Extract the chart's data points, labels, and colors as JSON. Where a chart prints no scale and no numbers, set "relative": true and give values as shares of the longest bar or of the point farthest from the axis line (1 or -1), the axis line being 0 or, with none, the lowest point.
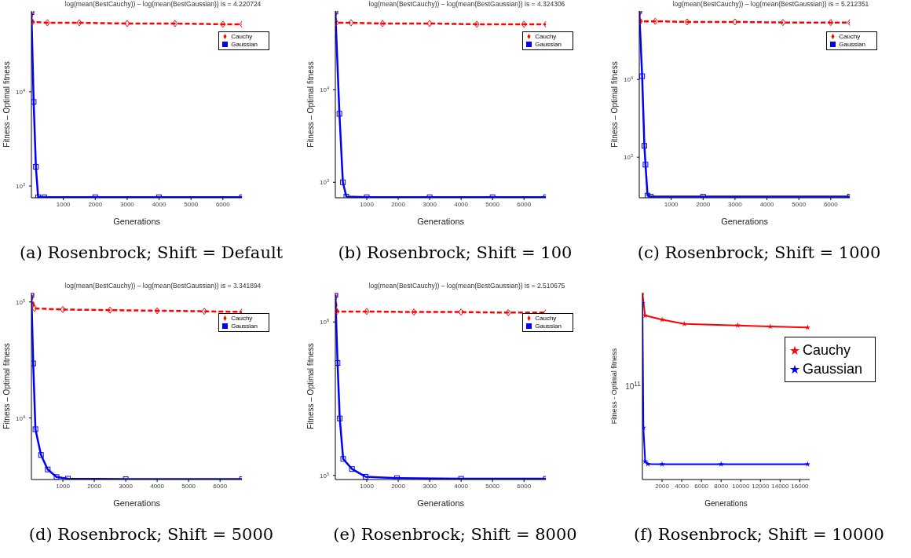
{
  "chart_data": [
    {
      "type": "line",
      "title": "log(mean(BestCauchy)) – log(mean(BestGaussian)) is = 4.220724",
      "xlabel": "Generations",
      "ylabel": "Fitness – Optimal fitness",
      "log": "y",
      "xlim": [
        0,
        6600
      ],
      "xticks": [
        1000,
        2000,
        3000,
        4000,
        5000,
        6000
      ],
      "ylim": [
        750,
        72000
      ],
      "yticks": [
        {
          "value": 1000,
          "label": "10$^{3}$"
        },
        {
          "value": 10000,
          "label": "10$^{4}$"
        }
      ],
      "legend": "top right",
      "annotations": [
        "(a) Rosenbrock; Shift = Default"
      ],
      "series": [
        {
          "name": "Cauchy",
          "color": "#ff0000",
          "line_style": "dashed",
          "marker": "diamond",
          "x": [
            0,
            30,
            500,
            1500,
            3000,
            4500,
            6000,
            6600
          ],
          "values": [
            70000,
            55000,
            54000,
            54000,
            53000,
            53000,
            52000,
            52000
          ]
        },
        {
          "name": "Gaussian",
          "color": "#0000ff",
          "line_style": "solid",
          "marker": "square",
          "x": [
            0,
            70,
            140,
            210,
            400,
            2000,
            4000,
            6600
          ],
          "values": [
            70000,
            7800,
            1600,
            760,
            760,
            760,
            760,
            760
          ]
        }
      ]
    },
    {
      "type": "line",
      "title": "log(mean(BestCauchy)) – log(mean(BestGaussian)) is = 4.324306",
      "xlabel": "Generations",
      "ylabel": "Fitness – Optimal fitness",
      "log": "y",
      "xlim": [
        0,
        6700
      ],
      "xticks": [
        1000,
        2000,
        3000,
        4000,
        5000,
        6000
      ],
      "ylim": [
        680,
        71000
      ],
      "yticks": [
        {
          "value": 1000,
          "label": "10$^{3}$"
        },
        {
          "value": 10000,
          "label": "10$^{4}$"
        }
      ],
      "legend": "top right",
      "annotations": [
        "(b) Rosenbrock; Shift = 100"
      ],
      "series": [
        {
          "name": "Cauchy",
          "color": "#ff0000",
          "line_style": "dashed",
          "marker": "diamond",
          "x": [
            0,
            30,
            500,
            1500,
            3000,
            4500,
            6000,
            6700
          ],
          "values": [
            71000,
            53000,
            53000,
            52000,
            52000,
            51000,
            51000,
            51000
          ]
        },
        {
          "name": "Gaussian",
          "color": "#0000ff",
          "line_style": "solid",
          "marker": "square",
          "x": [
            0,
            130,
            240,
            350,
            1000,
            3000,
            5000,
            6700
          ],
          "values": [
            70000,
            5500,
            1000,
            700,
            690,
            690,
            690,
            690
          ]
        }
      ]
    },
    {
      "type": "line",
      "title": "log(mean(BestCauchy)) – log(mean(BestGaussian)) is = 5.212351",
      "xlabel": "Generations",
      "ylabel": "Fitness – Optimal fitness",
      "log": "y",
      "xlim": [
        0,
        6600
      ],
      "xticks": [
        1000,
        2000,
        3000,
        4000,
        5000,
        6000
      ],
      "ylim": [
        300,
        76000
      ],
      "yticks": [
        {
          "value": 1000,
          "label": "10$^{3}$"
        },
        {
          "value": 10000,
          "label": "10$^{4}$"
        }
      ],
      "legend": "top right",
      "annotations": [
        "(c) Rosenbrock; Shift = 1000"
      ],
      "series": [
        {
          "name": "Cauchy",
          "color": "#ff0000",
          "line_style": "dashed",
          "marker": "diamond",
          "x": [
            0,
            30,
            500,
            1500,
            3000,
            4500,
            6000,
            6600
          ],
          "values": [
            76000,
            56000,
            56000,
            55000,
            55000,
            54000,
            54000,
            54000
          ]
        },
        {
          "name": "Gaussian",
          "color": "#0000ff",
          "line_style": "solid",
          "marker": "square",
          "x": [
            0,
            90,
            160,
            195,
            260,
            360,
            2000,
            6600
          ],
          "values": [
            76000,
            11000,
            1400,
            800,
            320,
            310,
            310,
            310
          ]
        }
      ]
    },
    {
      "type": "line",
      "title": "log(mean(BestCauchy)) – log(mean(BestGaussian)) is = 3.341894",
      "xlabel": "Generations",
      "ylabel": "Fitness – Optimal fitness",
      "log": "y",
      "xlim": [
        0,
        6700
      ],
      "xticks": [
        1000,
        2000,
        3000,
        4000,
        5000,
        6000
      ],
      "ylim": [
        2950,
        120000
      ],
      "yticks": [
        {
          "value": 10000,
          "label": "10$^{4}$"
        },
        {
          "value": 100000,
          "label": "10$^{5}$"
        }
      ],
      "legend": "top right",
      "annotations": [
        "(d) Rosenbrock; Shift = 5000"
      ],
      "series": [
        {
          "name": "Cauchy",
          "color": "#ff0000",
          "line_style": "dashed",
          "marker": "diamond",
          "x": [
            0,
            100,
            1000,
            2500,
            4000,
            5500,
            6700
          ],
          "values": [
            115000,
            88000,
            86000,
            85000,
            84000,
            83000,
            82000
          ]
        },
        {
          "name": "Gaussian",
          "color": "#0000ff",
          "line_style": "solid",
          "marker": "square",
          "x": [
            0,
            57,
            128,
            305,
            520,
            800,
            1160,
            3000,
            6700
          ],
          "values": [
            115000,
            29500,
            8000,
            4800,
            3600,
            3100,
            3000,
            2970,
            2970
          ]
        }
      ]
    },
    {
      "type": "line",
      "title": "log(mean(BestCauchy)) – log(mean(BestGaussian)) is = 2.510675",
      "xlabel": "Generations",
      "ylabel": "Fitness – Optimal fitness",
      "log": "y",
      "xlim": [
        0,
        6700
      ],
      "xticks": [
        1000,
        2000,
        3000,
        4000,
        5000,
        6000
      ],
      "ylim": [
        94000,
        1550000
      ],
      "yticks": [
        {
          "value": 100000,
          "label": "10$^{5}$"
        },
        {
          "value": 1000000,
          "label": "10$^{6}$"
        }
      ],
      "legend": "top right",
      "annotations": [
        "(e) Rosenbrock; Shift = 8000"
      ],
      "series": [
        {
          "name": "Cauchy",
          "color": "#ff0000",
          "line_style": "dashed",
          "marker": "diamond",
          "x": [
            0,
            50,
            1000,
            2500,
            4000,
            5500,
            6700
          ],
          "values": [
            1500000,
            1170000,
            1170000,
            1160000,
            1160000,
            1150000,
            1150000
          ]
        },
        {
          "name": "Gaussian",
          "color": "#0000ff",
          "line_style": "solid",
          "marker": "square",
          "x": [
            0,
            70,
            140,
            250,
            530,
            960,
            1960,
            4000,
            6700
          ],
          "values": [
            1500000,
            540000,
            235000,
            128000,
            110000,
            98000,
            96000,
            95000,
            95000
          ]
        }
      ]
    },
    {
      "type": "line",
      "xlabel": "Generations",
      "ylabel": "Fitness - Optimal fitness",
      "relative": true,
      "xlim": [
        0,
        17000
      ],
      "xticks": [
        2000,
        4000,
        6000,
        8000,
        10000,
        12000,
        14000,
        16000
      ],
      "legend": "top right",
      "annotations": [
        "10$^{11}$",
        "(f) Rosenbrock; Shift = 10000"
      ],
      "series": [
        {
          "name": "Cauchy",
          "color": "#ff0000",
          "line_style": "solid",
          "marker": "star",
          "x": [
            0,
            270,
            2000,
            4260,
            9690,
            13000,
            16800
          ],
          "values": [
            1,
            0.878,
            0.856,
            0.833,
            0.825,
            0.819,
            0.814
          ]
        },
        {
          "name": "Gaussian",
          "color": "#0000ff",
          "line_style": "solid",
          "marker": "star",
          "x": [
            0,
            100,
            280,
            550,
            2000,
            8000,
            16800
          ],
          "values": [
            0.944,
            0.278,
            0.097,
            0.083,
            0.082,
            0.082,
            0.082
          ]
        }
      ]
    }
  ]
}
